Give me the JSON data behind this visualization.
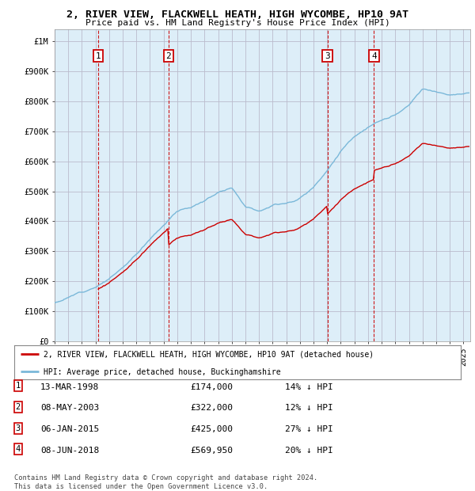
{
  "title1": "2, RIVER VIEW, FLACKWELL HEATH, HIGH WYCOMBE, HP10 9AT",
  "title2": "Price paid vs. HM Land Registry's House Price Index (HPI)",
  "ylabel_ticks": [
    "£0",
    "£100K",
    "£200K",
    "£300K",
    "£400K",
    "£500K",
    "£600K",
    "£700K",
    "£800K",
    "£900K",
    "£1M"
  ],
  "ytick_values": [
    0,
    100000,
    200000,
    300000,
    400000,
    500000,
    600000,
    700000,
    800000,
    900000,
    1000000
  ],
  "ylim": [
    0,
    1040000
  ],
  "xlim_start": 1995.0,
  "xlim_end": 2025.5,
  "sale_points": [
    {
      "year": 1998.19,
      "price": 174000,
      "label": "1"
    },
    {
      "year": 2003.36,
      "price": 322000,
      "label": "2"
    },
    {
      "year": 2015.02,
      "price": 425000,
      "label": "3"
    },
    {
      "year": 2018.44,
      "price": 569950,
      "label": "4"
    }
  ],
  "hpi_color": "#7ab8d9",
  "sale_color": "#cc0000",
  "background_color": "#ffffff",
  "plot_bg_color": "#ddeef8",
  "grid_color": "#bbbbcc",
  "legend_entries": [
    "2, RIVER VIEW, FLACKWELL HEATH, HIGH WYCOMBE, HP10 9AT (detached house)",
    "HPI: Average price, detached house, Buckinghamshire"
  ],
  "table_rows": [
    {
      "num": "1",
      "date": "13-MAR-1998",
      "price": "£174,000",
      "hpi": "14% ↓ HPI"
    },
    {
      "num": "2",
      "date": "08-MAY-2003",
      "price": "£322,000",
      "hpi": "12% ↓ HPI"
    },
    {
      "num": "3",
      "date": "06-JAN-2015",
      "price": "£425,000",
      "hpi": "27% ↓ HPI"
    },
    {
      "num": "4",
      "date": "08-JUN-2018",
      "price": "£569,950",
      "hpi": "20% ↓ HPI"
    }
  ],
  "footnote": "Contains HM Land Registry data © Crown copyright and database right 2024.\nThis data is licensed under the Open Government Licence v3.0.",
  "marker_box_color": "#cc0000"
}
